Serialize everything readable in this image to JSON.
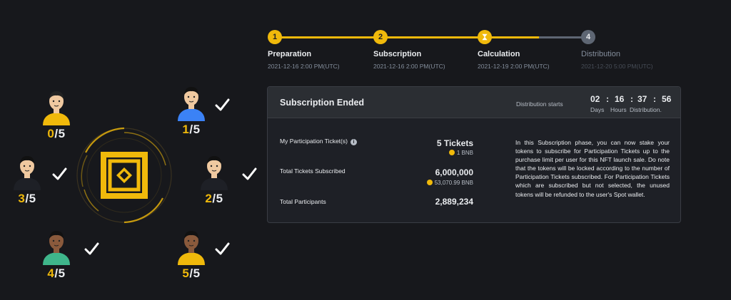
{
  "participants": [
    {
      "id": "p1",
      "hit": "0",
      "total": "5",
      "checked": false,
      "skin": "#f0c9a0",
      "shirt": "#f0b90b",
      "hair": "#222"
    },
    {
      "id": "p2",
      "hit": "1",
      "total": "5",
      "checked": true,
      "skin": "#f0c9a0",
      "shirt": "#3b82f6",
      "hair": "#111"
    },
    {
      "id": "p3",
      "hit": "3",
      "total": "5",
      "checked": true,
      "skin": "#f0c9a0",
      "shirt": "#1e2026",
      "hair": "#111"
    },
    {
      "id": "p4",
      "hit": "2",
      "total": "5",
      "checked": true,
      "skin": "#f0c9a0",
      "shirt": "#1e2026",
      "hair": "#111"
    },
    {
      "id": "p5",
      "hit": "4",
      "total": "5",
      "checked": true,
      "skin": "#8a5a3c",
      "shirt": "#3fb68b",
      "hair": "#111"
    },
    {
      "id": "p6",
      "hit": "5",
      "total": "5",
      "checked": true,
      "skin": "#8a5a3c",
      "shirt": "#f0b90b",
      "hair": "#111"
    }
  ],
  "separator": "/",
  "steps": [
    {
      "num": "1",
      "title": "Preparation",
      "date": "2021-12-16 2:00 PM(UTC)",
      "state": "done"
    },
    {
      "num": "2",
      "title": "Subscription",
      "date": "2021-12-16 2:00 PM(UTC)",
      "state": "done"
    },
    {
      "num": "",
      "title": "Calculation",
      "date": "2021-12-19 2:00 PM(UTC)",
      "state": "current"
    },
    {
      "num": "4",
      "title": "Distribution",
      "date": "2021-12-20 5:00 PM(UTC)",
      "state": "pending"
    }
  ],
  "panel": {
    "title": "Subscription Ended",
    "distribution_label": "Distribution starts",
    "countdown": {
      "days": "02",
      "hours": "16",
      "minutes": "37",
      "seconds": "56",
      "colon": ":"
    },
    "units": {
      "days": "Days",
      "hours": "Hours",
      "distribution": "Distribution."
    },
    "rows": {
      "tickets_label": "My Participation Ticket(s)",
      "tickets_value": "5 Tickets",
      "tickets_sub": "1 BNB",
      "subscribed_label": "Total Tickets Subscribed",
      "subscribed_value": "6,000,000",
      "subscribed_sub": "53,070.99  BNB",
      "participants_label": "Total Participants",
      "participants_value": "2,889,234"
    },
    "description": "In this Subscription phase, you can now stake your tokens to subscribe for Participation Tickets  up to the purchase limit per user for this NFT launch sale. Do note that the tokens will be locked according to the number of Participation Tickets subscribed. For Participation Tickets which are subscribed but not selected, the unused tokens will be refunded to the user's Spot wallet."
  },
  "colors": {
    "accent": "#f0b90b",
    "pending": "#5e6673",
    "background": "#17181c",
    "panel": "#1e2026"
  }
}
